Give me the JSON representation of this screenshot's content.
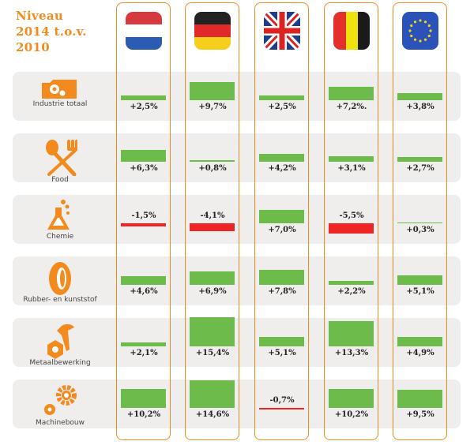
{
  "chart_data": {
    "type": "bar",
    "title": "Niveau\n2014 t.o.v.\n2010",
    "columns": [
      "Nederland",
      "Duitsland",
      "Verenigd Koninkrijk",
      "België",
      "Europese Unie"
    ],
    "column_icons": [
      "flag-netherlands-icon",
      "flag-germany-icon",
      "flag-uk-icon",
      "flag-belgium-icon",
      "flag-eu-icon"
    ],
    "categories": [
      "Industrie totaal",
      "Food",
      "Chemie",
      "Rubber- en kunststof",
      "Metaalbewerking",
      "Machinebouw"
    ],
    "category_icons": [
      "factory-gears-icon",
      "spoon-fork-icon",
      "flask-icon",
      "tire-icon",
      "nut-screw-icon",
      "gears-icon"
    ],
    "values": [
      [
        2.5,
        9.7,
        2.5,
        7.2,
        3.8
      ],
      [
        6.3,
        0.8,
        4.2,
        3.1,
        2.7
      ],
      [
        -1.5,
        -4.1,
        7.0,
        -5.5,
        0.3
      ],
      [
        4.6,
        6.9,
        7.8,
        2.2,
        5.1
      ],
      [
        2.1,
        15.4,
        5.1,
        13.3,
        4.9
      ],
      [
        10.2,
        14.6,
        -0.7,
        10.2,
        9.5
      ]
    ],
    "labels": [
      [
        "+2,5%",
        "+9,7%",
        "+2,5%",
        "+7,2%.",
        "+3,8%"
      ],
      [
        "+6,3%",
        "+0,8%",
        "+4,2%",
        "+3,1%",
        "+2,7%"
      ],
      [
        "-1,5%",
        "-4,1%",
        "+7,0%",
        "-5,5%",
        "+0,3%"
      ],
      [
        "+4,6%",
        "+6,9%",
        "+7,8%",
        "+2,2%",
        "+5,1%"
      ],
      [
        "+2,1%",
        "+15,4%",
        "+5,1%",
        "+13,3%",
        "+4,9%"
      ],
      [
        "+10,2%",
        "+14,6%",
        "-0,7%",
        "+10,2%",
        "+9,5%"
      ]
    ],
    "colors": {
      "positive": "#6dbb4a",
      "negative": "#ee2524",
      "accent": "#f28a1e",
      "row_bg": "#efeeed"
    }
  }
}
